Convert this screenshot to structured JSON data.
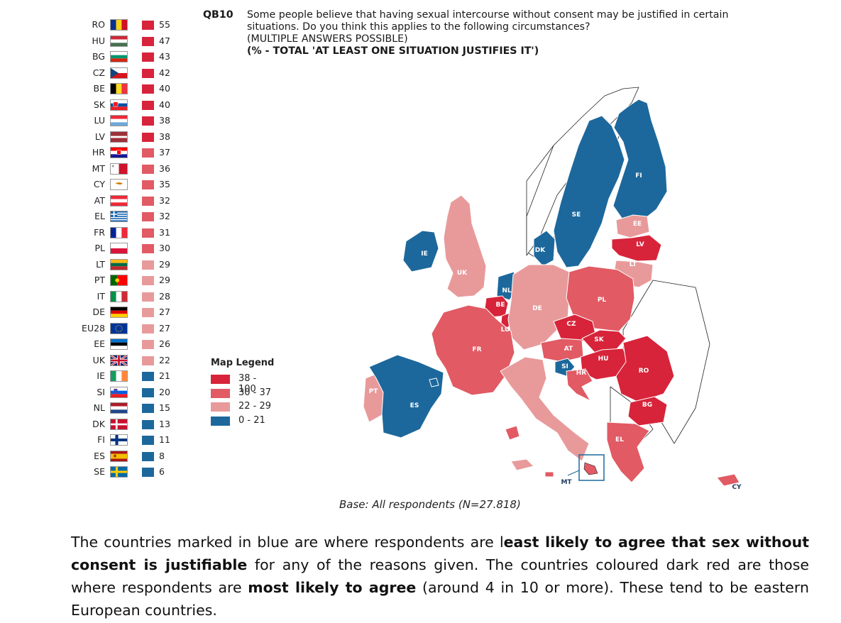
{
  "question": {
    "id": "QB10",
    "text": "Some people believe that having sexual intercourse without consent may be justified in certain situations. Do you think this applies to the following circumstances?",
    "note": "(MULTIPLE ANSWERS POSSIBLE)",
    "measure": "(% - TOTAL 'AT LEAST ONE SITUATION JUSTIFIES IT')"
  },
  "colors": {
    "dark_red": "#d7243a",
    "medium_red": "#e15a64",
    "light_red": "#e89a9b",
    "blue": "#1c689c"
  },
  "ranking": [
    {
      "code": "RO",
      "value": 55,
      "band": "dark_red",
      "flag": "ro-flag-icon"
    },
    {
      "code": "HU",
      "value": 47,
      "band": "dark_red",
      "flag": "hu-flag-icon"
    },
    {
      "code": "BG",
      "value": 43,
      "band": "dark_red",
      "flag": "bg-flag-icon"
    },
    {
      "code": "CZ",
      "value": 42,
      "band": "dark_red",
      "flag": "cz-flag-icon"
    },
    {
      "code": "BE",
      "value": 40,
      "band": "dark_red",
      "flag": "be-flag-icon"
    },
    {
      "code": "SK",
      "value": 40,
      "band": "dark_red",
      "flag": "sk-flag-icon"
    },
    {
      "code": "LU",
      "value": 38,
      "band": "dark_red",
      "flag": "lu-flag-icon"
    },
    {
      "code": "LV",
      "value": 38,
      "band": "dark_red",
      "flag": "lv-flag-icon"
    },
    {
      "code": "HR",
      "value": 37,
      "band": "medium_red",
      "flag": "hr-flag-icon"
    },
    {
      "code": "MT",
      "value": 36,
      "band": "medium_red",
      "flag": "mt-flag-icon"
    },
    {
      "code": "CY",
      "value": 35,
      "band": "medium_red",
      "flag": "cy-flag-icon"
    },
    {
      "code": "AT",
      "value": 32,
      "band": "medium_red",
      "flag": "at-flag-icon"
    },
    {
      "code": "EL",
      "value": 32,
      "band": "medium_red",
      "flag": "el-flag-icon"
    },
    {
      "code": "FR",
      "value": 31,
      "band": "medium_red",
      "flag": "fr-flag-icon"
    },
    {
      "code": "PL",
      "value": 30,
      "band": "medium_red",
      "flag": "pl-flag-icon"
    },
    {
      "code": "LT",
      "value": 29,
      "band": "light_red",
      "flag": "lt-flag-icon"
    },
    {
      "code": "PT",
      "value": 29,
      "band": "light_red",
      "flag": "pt-flag-icon"
    },
    {
      "code": "IT",
      "value": 28,
      "band": "light_red",
      "flag": "it-flag-icon"
    },
    {
      "code": "DE",
      "value": 27,
      "band": "light_red",
      "flag": "de-flag-icon"
    },
    {
      "code": "EU28",
      "value": 27,
      "band": "light_red",
      "flag": "eu-flag-icon"
    },
    {
      "code": "EE",
      "value": 26,
      "band": "light_red",
      "flag": "ee-flag-icon"
    },
    {
      "code": "UK",
      "value": 22,
      "band": "light_red",
      "flag": "uk-flag-icon"
    },
    {
      "code": "IE",
      "value": 21,
      "band": "blue",
      "flag": "ie-flag-icon"
    },
    {
      "code": "SI",
      "value": 20,
      "band": "blue",
      "flag": "si-flag-icon"
    },
    {
      "code": "NL",
      "value": 15,
      "band": "blue",
      "flag": "nl-flag-icon"
    },
    {
      "code": "DK",
      "value": 13,
      "band": "blue",
      "flag": "dk-flag-icon"
    },
    {
      "code": "FI",
      "value": 11,
      "band": "blue",
      "flag": "fi-flag-icon"
    },
    {
      "code": "ES",
      "value": 8,
      "band": "blue",
      "flag": "es-flag-icon"
    },
    {
      "code": "SE",
      "value": 6,
      "band": "blue",
      "flag": "se-flag-icon"
    }
  ],
  "legend": {
    "title": "Map Legend",
    "items": [
      {
        "label": "38 - 100",
        "band": "dark_red"
      },
      {
        "label": "30 - 37",
        "band": "medium_red"
      },
      {
        "label": "22 - 29",
        "band": "light_red"
      },
      {
        "label": "0 - 21",
        "band": "blue"
      }
    ]
  },
  "map_labels": [
    "FI",
    "SE",
    "EE",
    "LV",
    "LT",
    "DK",
    "IE",
    "UK",
    "NL",
    "PL",
    "DE",
    "BE",
    "LU",
    "CZ",
    "SK",
    "AT",
    "HU",
    "RO",
    "SI",
    "HR",
    "FR",
    "PT",
    "ES",
    "IT",
    "BG",
    "EL",
    "MT",
    "CY"
  ],
  "base": "Base: All respondents (N=27.818)",
  "explanation": {
    "p1": "The countries marked in blue are where respondents are l",
    "b1": "east likely to agree that sex without consent is justifiable",
    "p2": " for any of the reasons given. The countries coloured dark red are those where respondents are ",
    "b2": "most likely to agree",
    "p3": " (around 4 in 10 or more). These tend to be eastern European countries."
  }
}
